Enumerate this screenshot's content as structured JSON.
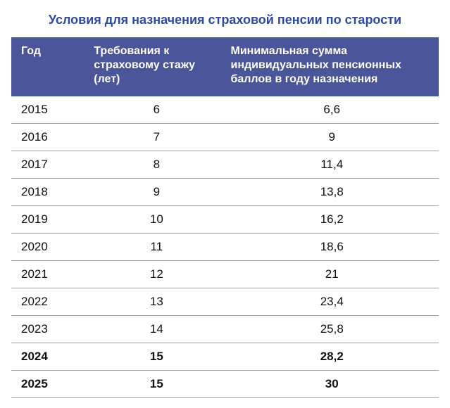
{
  "title": "Условия для назначения страховой пенсии по старости",
  "title_color": "#2e4a9e",
  "header_bg": "#4a5699",
  "header_text_color": "#ffffff",
  "row_border_color": "#9aa0a6",
  "columns": [
    "Год",
    "Требования к страховому стажу (лет)",
    "Минимальная сумма индивидуальных пенсионных баллов в году назначения"
  ],
  "rows": [
    {
      "year": "2015",
      "stazh": "6",
      "points": "6,6",
      "bold": false
    },
    {
      "year": "2016",
      "stazh": "7",
      "points": "9",
      "bold": false
    },
    {
      "year": "2017",
      "stazh": "8",
      "points": "11,4",
      "bold": false
    },
    {
      "year": "2018",
      "stazh": "9",
      "points": "13,8",
      "bold": false
    },
    {
      "year": "2019",
      "stazh": "10",
      "points": "16,2",
      "bold": false
    },
    {
      "year": "2020",
      "stazh": "11",
      "points": "18,6",
      "bold": false
    },
    {
      "year": "2021",
      "stazh": "12",
      "points": "21",
      "bold": false
    },
    {
      "year": "2022",
      "stazh": "13",
      "points": "23,4",
      "bold": false
    },
    {
      "year": "2023",
      "stazh": "14",
      "points": "25,8",
      "bold": false
    },
    {
      "year": "2024",
      "stazh": "15",
      "points": "28,2",
      "bold": true
    },
    {
      "year": "2025",
      "stazh": "15",
      "points": "30",
      "bold": true
    }
  ]
}
